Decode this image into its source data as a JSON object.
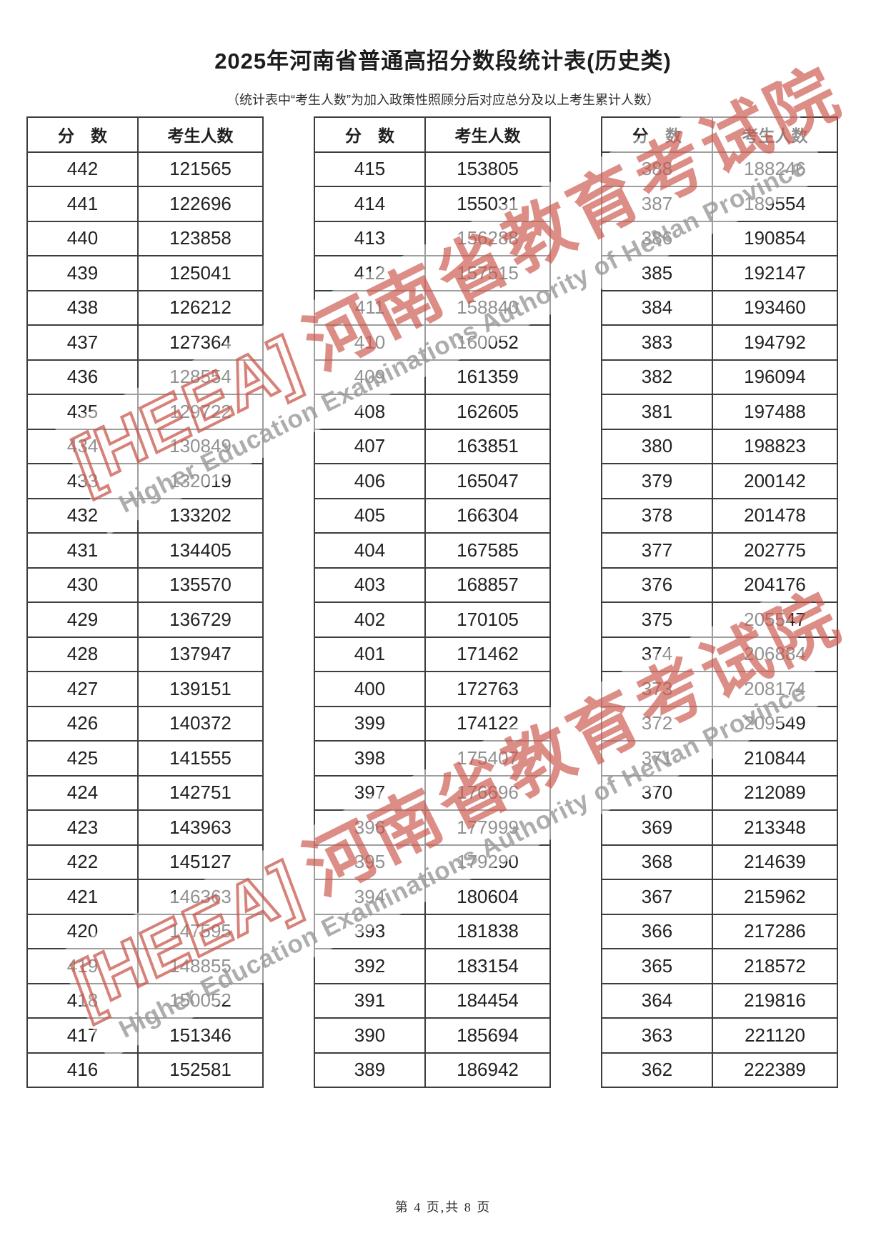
{
  "title": "2025年河南省普通高招分数段统计表(历史类)",
  "subtitle": "（统计表中“考生人数”为加入政策性照顾分后对应总分及以上考生累计人数）",
  "footer": "第 4 页,共 8 页",
  "watermark": {
    "logo": "[HEEA]",
    "cn": "河南省教育考试院",
    "en": "Higher Education Examinations Authority of HeNan Province",
    "color": "#c85248"
  },
  "header_score": "分　数",
  "header_count": "考生人数",
  "tables": [
    {
      "headers": [
        "分　数",
        "考生人数"
      ],
      "rows": [
        [
          "442",
          "121565"
        ],
        [
          "441",
          "122696"
        ],
        [
          "440",
          "123858"
        ],
        [
          "439",
          "125041"
        ],
        [
          "438",
          "126212"
        ],
        [
          "437",
          "127364"
        ],
        [
          "436",
          "128554"
        ],
        [
          "435",
          "129722"
        ],
        [
          "434",
          "130849"
        ],
        [
          "433",
          "132019"
        ],
        [
          "432",
          "133202"
        ],
        [
          "431",
          "134405"
        ],
        [
          "430",
          "135570"
        ],
        [
          "429",
          "136729"
        ],
        [
          "428",
          "137947"
        ],
        [
          "427",
          "139151"
        ],
        [
          "426",
          "140372"
        ],
        [
          "425",
          "141555"
        ],
        [
          "424",
          "142751"
        ],
        [
          "423",
          "143963"
        ],
        [
          "422",
          "145127"
        ],
        [
          "421",
          "146363"
        ],
        [
          "420",
          "147595"
        ],
        [
          "419",
          "148855"
        ],
        [
          "418",
          "150052"
        ],
        [
          "417",
          "151346"
        ],
        [
          "416",
          "152581"
        ]
      ]
    },
    {
      "headers": [
        "分　数",
        "考生人数"
      ],
      "rows": [
        [
          "415",
          "153805"
        ],
        [
          "414",
          "155031"
        ],
        [
          "413",
          "156288"
        ],
        [
          "412",
          "157515"
        ],
        [
          "411",
          "158840"
        ],
        [
          "410",
          "160052"
        ],
        [
          "409",
          "161359"
        ],
        [
          "408",
          "162605"
        ],
        [
          "407",
          "163851"
        ],
        [
          "406",
          "165047"
        ],
        [
          "405",
          "166304"
        ],
        [
          "404",
          "167585"
        ],
        [
          "403",
          "168857"
        ],
        [
          "402",
          "170105"
        ],
        [
          "401",
          "171462"
        ],
        [
          "400",
          "172763"
        ],
        [
          "399",
          "174122"
        ],
        [
          "398",
          "175407"
        ],
        [
          "397",
          "176696"
        ],
        [
          "396",
          "177999"
        ],
        [
          "395",
          "179290"
        ],
        [
          "394",
          "180604"
        ],
        [
          "393",
          "181838"
        ],
        [
          "392",
          "183154"
        ],
        [
          "391",
          "184454"
        ],
        [
          "390",
          "185694"
        ],
        [
          "389",
          "186942"
        ]
      ]
    },
    {
      "headers": [
        "分　数",
        "考生人数"
      ],
      "rows": [
        [
          "388",
          "188246"
        ],
        [
          "387",
          "189554"
        ],
        [
          "386",
          "190854"
        ],
        [
          "385",
          "192147"
        ],
        [
          "384",
          "193460"
        ],
        [
          "383",
          "194792"
        ],
        [
          "382",
          "196094"
        ],
        [
          "381",
          "197488"
        ],
        [
          "380",
          "198823"
        ],
        [
          "379",
          "200142"
        ],
        [
          "378",
          "201478"
        ],
        [
          "377",
          "202775"
        ],
        [
          "376",
          "204176"
        ],
        [
          "375",
          "205547"
        ],
        [
          "374",
          "206884"
        ],
        [
          "373",
          "208174"
        ],
        [
          "372",
          "209549"
        ],
        [
          "371",
          "210844"
        ],
        [
          "370",
          "212089"
        ],
        [
          "369",
          "213348"
        ],
        [
          "368",
          "214639"
        ],
        [
          "367",
          "215962"
        ],
        [
          "366",
          "217286"
        ],
        [
          "365",
          "218572"
        ],
        [
          "364",
          "219816"
        ],
        [
          "363",
          "221120"
        ],
        [
          "362",
          "222389"
        ]
      ]
    }
  ]
}
